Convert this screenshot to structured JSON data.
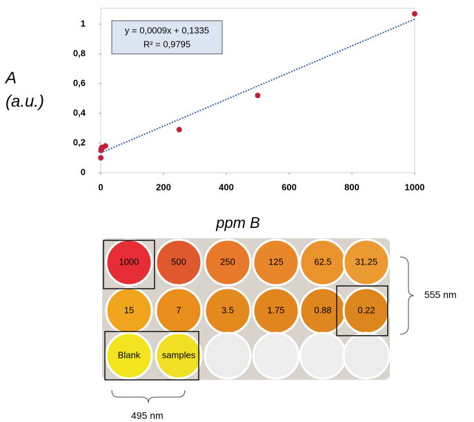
{
  "chart_data": {
    "type": "scatter",
    "y_label_lines": [
      "A",
      "(a.u.)"
    ],
    "x_label": "ppm B",
    "annotation": [
      "y = 0,0009x + 0,1335",
      "R² = 0,9795"
    ],
    "x": [
      0.22,
      0.88,
      1.75,
      3.5,
      7,
      15,
      250,
      500,
      1000
    ],
    "values": [
      0.1,
      0.15,
      0.16,
      0.17,
      0.17,
      0.18,
      0.29,
      0.52,
      1.07
    ],
    "color": "#c0203a",
    "trendline": {
      "slope": 0.0009,
      "intercept": 0.1335,
      "color": "#2e5fa8"
    },
    "xlim": [
      0,
      1000
    ],
    "xticks": [
      0,
      200,
      400,
      600,
      800,
      1000
    ],
    "ylim": [
      0,
      1.1
    ],
    "yticks": [
      0,
      {
        "value": 0.2,
        "label": "0,2"
      },
      {
        "value": 0.4,
        "label": "0,4"
      },
      {
        "value": 0.6,
        "label": "0,6"
      },
      {
        "value": 0.8,
        "label": "0,8"
      },
      1
    ]
  },
  "plate": {
    "rows": [
      [
        "1000",
        "500",
        "250",
        "125",
        "62.5",
        "31.25"
      ],
      [
        "15",
        "7",
        "3.5",
        "1.75",
        "0.88",
        "0.22"
      ],
      [
        "Blank",
        "samples"
      ]
    ],
    "wavelength_rows": "555 nm",
    "wavelength_blank": "495 nm"
  }
}
